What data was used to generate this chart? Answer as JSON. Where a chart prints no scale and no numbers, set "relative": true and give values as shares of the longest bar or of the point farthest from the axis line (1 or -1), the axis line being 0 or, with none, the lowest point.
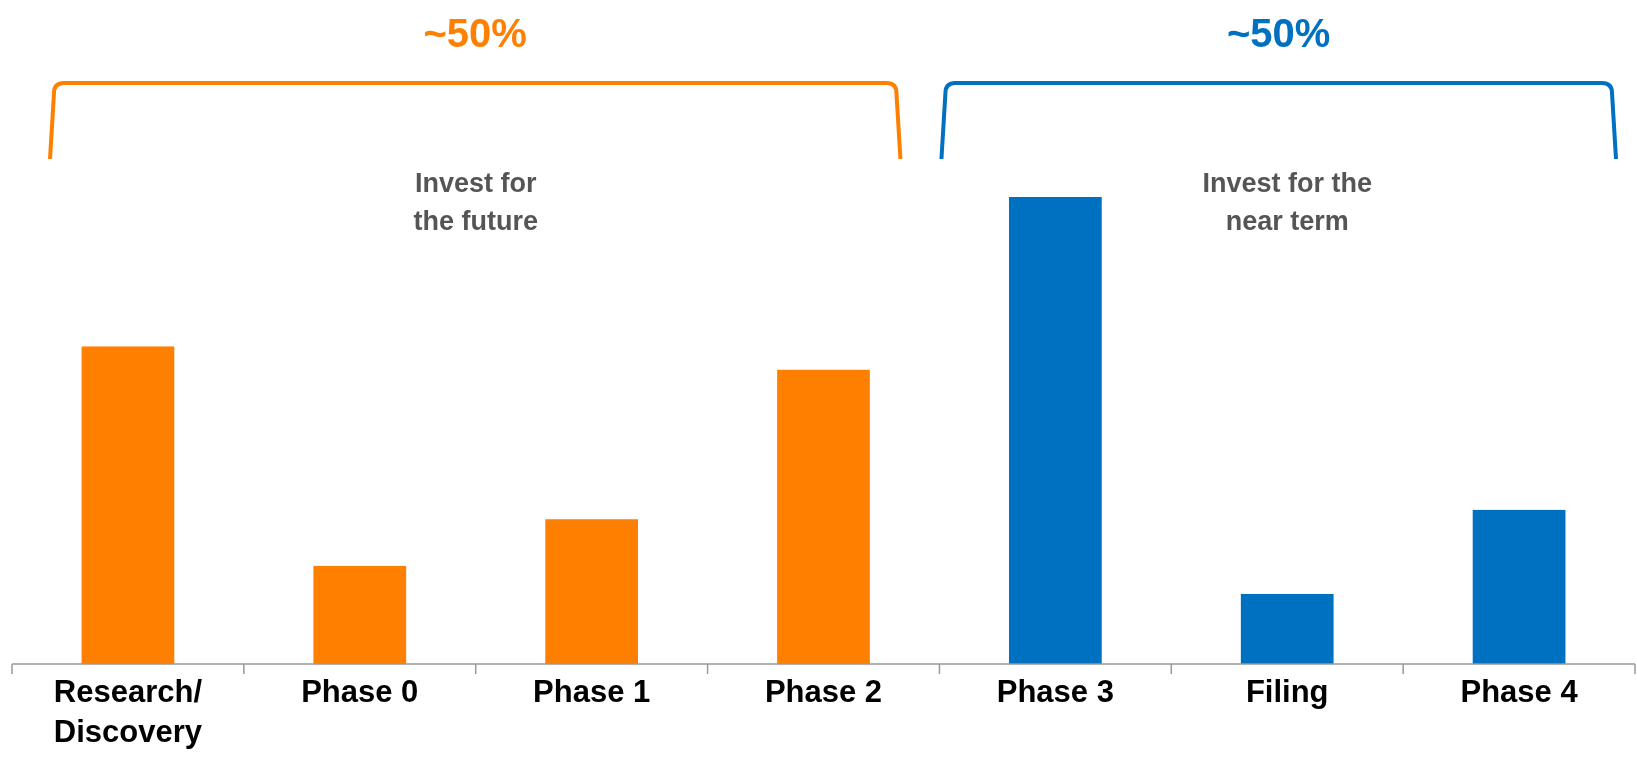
{
  "chart_data": {
    "type": "bar",
    "relative": true,
    "categories": [
      "Research/ Discovery",
      "Phase 0",
      "Phase 1",
      "Phase 2",
      "Phase 3",
      "Filing",
      "Phase 4"
    ],
    "values": [
      0.68,
      0.21,
      0.31,
      0.63,
      1,
      0.15,
      0.33
    ],
    "colors": [
      "#ff8000",
      "#ff8000",
      "#ff8000",
      "#ff8000",
      "#0070c0",
      "#0070c0",
      "#0070c0"
    ],
    "annotations": [
      "~50%",
      "Invest for the future",
      "~50%",
      "Invest for the near term"
    ]
  }
}
